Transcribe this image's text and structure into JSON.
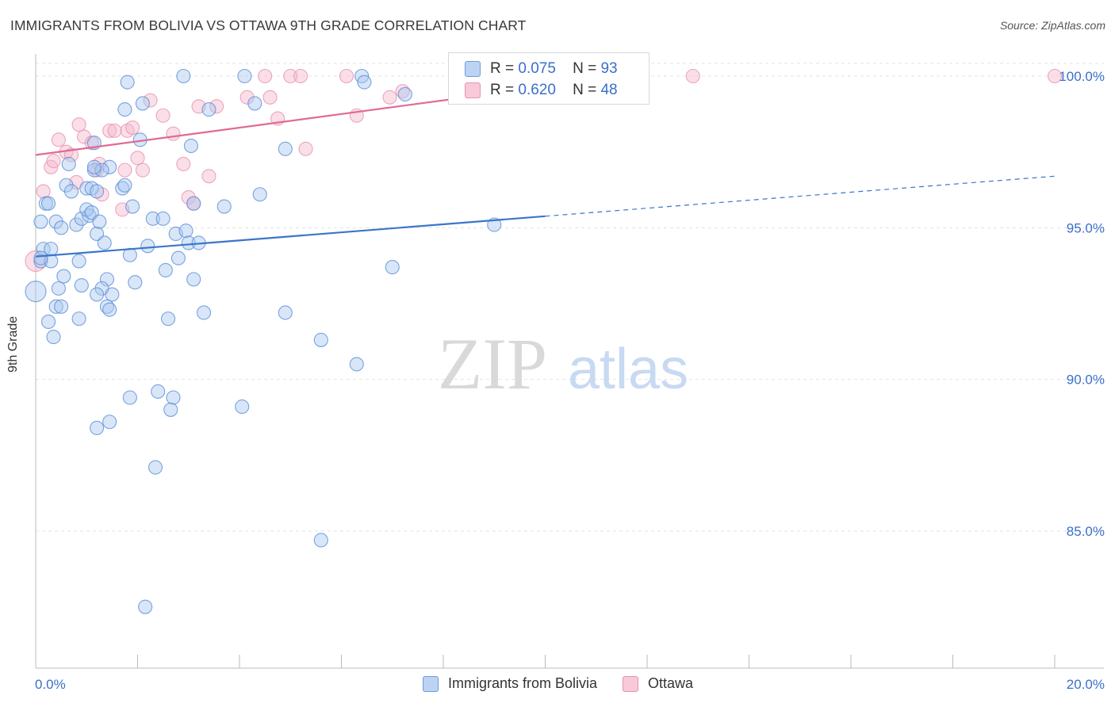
{
  "title": "IMMIGRANTS FROM BOLIVIA VS OTTAWA 9TH GRADE CORRELATION CHART",
  "source": "Source: ZipAtlas.com",
  "watermark": {
    "zip": "ZIP",
    "atlas": "atlas"
  },
  "legend": {
    "rows": [
      {
        "r_label": "R =",
        "r_value": "0.075",
        "n_label": "N =",
        "n_value": "93"
      },
      {
        "r_label": "R =",
        "r_value": "0.620",
        "n_label": "N =",
        "n_value": "48"
      }
    ]
  },
  "bottom_legend": [
    "Immigrants from Bolivia",
    "Ottawa"
  ],
  "colors": {
    "blue": "#3a76c8",
    "blue_fill": "#a9c8f0",
    "pink": "#e06a95",
    "pink_fill": "#f4b9cc",
    "tick_text": "#3b6fc9",
    "grid": "#e3e3e3"
  },
  "chart_data": {
    "type": "scatter",
    "title": "IMMIGRANTS FROM BOLIVIA VS OTTAWA 9TH GRADE CORRELATION CHART",
    "xlabel": "",
    "ylabel": "9th Grade",
    "xlim": [
      0,
      20
    ],
    "ylim": [
      80.5,
      100.8
    ],
    "x_tick_labels": [
      "0.0%",
      "20.0%"
    ],
    "y_ticks": [
      85,
      90,
      95,
      100
    ],
    "y_tick_labels": [
      "85.0%",
      "90.0%",
      "95.0%",
      "100.0%"
    ],
    "grid": true,
    "legend_position": "top-center",
    "series": [
      {
        "name": "Immigrants from Bolivia",
        "color": "#3a76c8",
        "r": 0.075,
        "n": 93,
        "trend": {
          "x0": 0,
          "y0": 94.05,
          "x1": 10,
          "y1": 95.38,
          "dashed_to_x": 20,
          "dashed_to_y": 96.7
        },
        "points": [
          [
            0.1,
            93.9
          ],
          [
            0.15,
            94.3
          ],
          [
            0.1,
            95.2
          ],
          [
            0.0,
            92.9
          ],
          [
            0.3,
            93.9
          ],
          [
            0.2,
            95.8
          ],
          [
            0.25,
            95.8
          ],
          [
            0.4,
            95.2
          ],
          [
            0.45,
            93.0
          ],
          [
            0.5,
            95.0
          ],
          [
            0.6,
            96.4
          ],
          [
            0.7,
            96.2
          ],
          [
            0.65,
            97.1
          ],
          [
            0.55,
            93.4
          ],
          [
            0.4,
            92.4
          ],
          [
            0.25,
            91.9
          ],
          [
            0.35,
            91.4
          ],
          [
            0.8,
            95.1
          ],
          [
            0.9,
            95.3
          ],
          [
            0.85,
            93.9
          ],
          [
            0.9,
            93.1
          ],
          [
            0.85,
            92.0
          ],
          [
            0.5,
            92.4
          ],
          [
            0.3,
            94.3
          ],
          [
            0.1,
            94.0
          ],
          [
            1.0,
            96.3
          ],
          [
            1.1,
            96.3
          ],
          [
            1.2,
            96.2
          ],
          [
            1.15,
            96.9
          ],
          [
            1.05,
            95.4
          ],
          [
            1.0,
            95.6
          ],
          [
            1.1,
            95.5
          ],
          [
            1.2,
            94.8
          ],
          [
            1.25,
            95.2
          ],
          [
            1.35,
            94.5
          ],
          [
            1.4,
            93.3
          ],
          [
            1.3,
            93.0
          ],
          [
            1.2,
            92.8
          ],
          [
            1.4,
            92.4
          ],
          [
            1.5,
            92.8
          ],
          [
            1.45,
            92.3
          ],
          [
            1.45,
            97.0
          ],
          [
            1.15,
            97.8
          ],
          [
            1.3,
            96.9
          ],
          [
            1.7,
            96.3
          ],
          [
            1.75,
            96.4
          ],
          [
            1.9,
            95.7
          ],
          [
            1.85,
            94.1
          ],
          [
            1.95,
            93.2
          ],
          [
            2.2,
            94.4
          ],
          [
            2.3,
            95.3
          ],
          [
            2.5,
            95.3
          ],
          [
            2.55,
            93.6
          ],
          [
            2.6,
            92.0
          ],
          [
            2.75,
            94.8
          ],
          [
            2.8,
            94.0
          ],
          [
            2.95,
            94.9
          ],
          [
            3.0,
            94.5
          ],
          [
            3.1,
            95.8
          ],
          [
            3.2,
            94.5
          ],
          [
            3.1,
            93.3
          ],
          [
            3.3,
            92.2
          ],
          [
            3.7,
            95.7
          ],
          [
            3.4,
            98.9
          ],
          [
            3.05,
            97.7
          ],
          [
            2.05,
            97.9
          ],
          [
            2.1,
            99.1
          ],
          [
            1.75,
            98.9
          ],
          [
            1.8,
            99.8
          ],
          [
            2.9,
            100.0
          ],
          [
            4.1,
            100.0
          ],
          [
            4.3,
            99.1
          ],
          [
            4.4,
            96.1
          ],
          [
            4.9,
            97.6
          ],
          [
            4.9,
            92.2
          ],
          [
            5.6,
            91.3
          ],
          [
            6.3,
            90.5
          ],
          [
            6.4,
            100.0
          ],
          [
            6.45,
            99.8
          ],
          [
            7.0,
            93.7
          ],
          [
            7.25,
            99.4
          ],
          [
            9.0,
            95.1
          ],
          [
            4.05,
            89.1
          ],
          [
            2.7,
            89.4
          ],
          [
            2.65,
            89.0
          ],
          [
            2.4,
            89.6
          ],
          [
            1.85,
            89.4
          ],
          [
            1.45,
            88.6
          ],
          [
            1.2,
            88.4
          ],
          [
            2.35,
            87.1
          ],
          [
            5.6,
            84.7
          ],
          [
            2.15,
            82.5
          ],
          [
            1.15,
            97.0
          ]
        ]
      },
      {
        "name": "Ottawa",
        "color": "#e06a95",
        "r": 0.62,
        "n": 48,
        "trend": {
          "x0": 0,
          "y0": 97.4,
          "x1": 12,
          "y1": 100.1
        },
        "points": [
          [
            0.0,
            93.9
          ],
          [
            0.15,
            96.2
          ],
          [
            0.3,
            97.0
          ],
          [
            0.35,
            97.2
          ],
          [
            0.45,
            97.9
          ],
          [
            0.6,
            97.5
          ],
          [
            0.7,
            97.4
          ],
          [
            0.8,
            96.5
          ],
          [
            0.85,
            98.4
          ],
          [
            0.95,
            98.0
          ],
          [
            1.1,
            97.8
          ],
          [
            1.2,
            96.9
          ],
          [
            1.25,
            97.1
          ],
          [
            1.3,
            96.1
          ],
          [
            1.45,
            98.2
          ],
          [
            1.55,
            98.2
          ],
          [
            1.7,
            95.6
          ],
          [
            1.75,
            96.9
          ],
          [
            1.8,
            98.2
          ],
          [
            1.9,
            98.3
          ],
          [
            2.0,
            97.3
          ],
          [
            2.1,
            96.9
          ],
          [
            2.25,
            99.2
          ],
          [
            2.5,
            98.7
          ],
          [
            2.7,
            98.1
          ],
          [
            2.9,
            97.1
          ],
          [
            3.0,
            96.0
          ],
          [
            3.1,
            95.8
          ],
          [
            3.2,
            99.0
          ],
          [
            3.4,
            96.7
          ],
          [
            3.55,
            99.0
          ],
          [
            4.15,
            99.3
          ],
          [
            4.5,
            100.0
          ],
          [
            4.6,
            99.3
          ],
          [
            4.75,
            98.6
          ],
          [
            5.0,
            100.0
          ],
          [
            5.2,
            100.0
          ],
          [
            5.3,
            97.6
          ],
          [
            6.1,
            100.0
          ],
          [
            6.3,
            98.7
          ],
          [
            6.95,
            99.3
          ],
          [
            7.2,
            99.5
          ],
          [
            8.3,
            100.0
          ],
          [
            9.3,
            100.0
          ],
          [
            10.5,
            100.0
          ],
          [
            11.8,
            100.0
          ],
          [
            12.9,
            100.0
          ],
          [
            20.0,
            100.0
          ]
        ]
      }
    ]
  }
}
